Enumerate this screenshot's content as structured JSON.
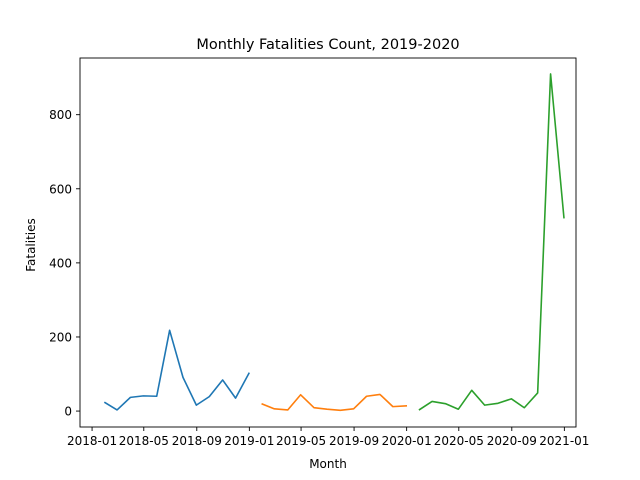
{
  "chart_data": {
    "type": "line",
    "title": "Monthly Fatalities Count, 2019-2020",
    "xlabel": "Month",
    "ylabel": "Fatalities",
    "xlim": [
      "2017-12-04",
      "2021-01-28"
    ],
    "ylim": [
      -43,
      953
    ],
    "x_ticks": [
      "2018-01",
      "2018-05",
      "2018-09",
      "2019-01",
      "2019-05",
      "2019-09",
      "2020-01",
      "2020-05",
      "2020-09",
      "2021-01"
    ],
    "y_ticks": [
      0,
      200,
      400,
      600,
      800
    ],
    "grid": false,
    "legend": false,
    "series": [
      {
        "color": "#1f77b4",
        "x": [
          "2018-01-31",
          "2018-02-28",
          "2018-03-31",
          "2018-04-30",
          "2018-05-31",
          "2018-06-30",
          "2018-07-31",
          "2018-08-31",
          "2018-09-30",
          "2018-10-31",
          "2018-11-30",
          "2018-12-31"
        ],
        "y": [
          23,
          3,
          37,
          41,
          40,
          218,
          91,
          16,
          39,
          84,
          35,
          102
        ]
      },
      {
        "color": "#ff7f0e",
        "x": [
          "2019-01-31",
          "2019-02-28",
          "2019-03-31",
          "2019-04-30",
          "2019-05-31",
          "2019-06-30",
          "2019-07-31",
          "2019-08-31",
          "2019-09-30",
          "2019-10-31",
          "2019-11-30",
          "2019-12-31"
        ],
        "y": [
          19,
          6,
          3,
          44,
          9,
          5,
          2,
          6,
          40,
          45,
          12,
          14
        ]
      },
      {
        "color": "#2ca02c",
        "x": [
          "2020-01-31",
          "2020-02-29",
          "2020-03-31",
          "2020-04-30",
          "2020-05-31",
          "2020-06-30",
          "2020-07-31",
          "2020-08-31",
          "2020-09-30",
          "2020-10-31",
          "2020-11-30",
          "2020-12-31"
        ],
        "y": [
          4,
          26,
          20,
          5,
          56,
          16,
          21,
          33,
          9,
          49,
          910,
          522
        ]
      }
    ]
  }
}
